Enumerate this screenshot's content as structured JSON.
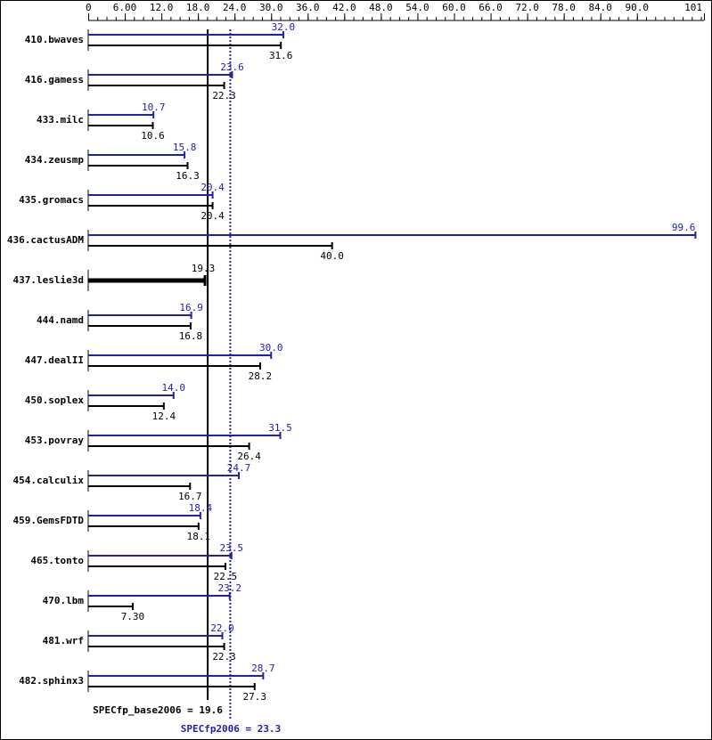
{
  "chart_data": {
    "type": "bar",
    "orientation": "horizontal",
    "xlim": [
      0,
      101
    ],
    "tick_labels": [
      "0",
      "6.00",
      "12.0",
      "18.0",
      "24.0",
      "30.0",
      "36.0",
      "42.0",
      "48.0",
      "54.0",
      "60.0",
      "66.0",
      "72.0",
      "78.0",
      "84.0",
      "90.0",
      "101"
    ],
    "tick_values": [
      0,
      6,
      12,
      18,
      24,
      30,
      36,
      42,
      48,
      54,
      60,
      66,
      72,
      78,
      84,
      90,
      101
    ],
    "minor_tick_step": 1.5,
    "categories": [
      "410.bwaves",
      "416.gamess",
      "433.milc",
      "434.zeusmp",
      "435.gromacs",
      "436.cactusADM",
      "437.leslie3d",
      "444.namd",
      "447.dealII",
      "450.soplex",
      "453.povray",
      "454.calculix",
      "459.GemsFDTD",
      "465.tonto",
      "470.lbm",
      "481.wrf",
      "482.sphinx3"
    ],
    "series": [
      {
        "key": "peak",
        "color": "#2020b0",
        "values": [
          32.0,
          23.6,
          10.7,
          15.8,
          20.4,
          99.6,
          null,
          16.9,
          30.0,
          14.0,
          31.5,
          24.7,
          18.4,
          23.5,
          23.2,
          22.0,
          28.7
        ],
        "labels": [
          "32.0",
          "23.6",
          "10.7",
          "15.8",
          "20.4",
          "99.6",
          "",
          "16.9",
          "30.0",
          "14.0",
          "31.5",
          "24.7",
          "18.4",
          "23.5",
          "23.2",
          "22.0",
          "28.7"
        ]
      },
      {
        "key": "base",
        "color": "#000000",
        "values": [
          31.6,
          22.3,
          10.6,
          16.3,
          20.4,
          40.0,
          19.3,
          16.8,
          28.2,
          12.4,
          26.4,
          16.7,
          18.1,
          22.5,
          7.3,
          22.3,
          27.3
        ],
        "labels": [
          "31.6",
          "22.3",
          "10.6",
          "16.3",
          "20.4",
          "40.0",
          "19.3",
          "16.8",
          "28.2",
          "12.4",
          "26.4",
          "16.7",
          "18.1",
          "22.5",
          "7.30",
          "22.3",
          "27.3"
        ]
      }
    ],
    "summary": {
      "base": {
        "value": 19.6,
        "label": "SPECfp_base2006 = 19.6",
        "color": "#000000"
      },
      "peak": {
        "value": 23.3,
        "label": "SPECfp2006 = 23.3",
        "color": "#2020b0"
      }
    }
  }
}
